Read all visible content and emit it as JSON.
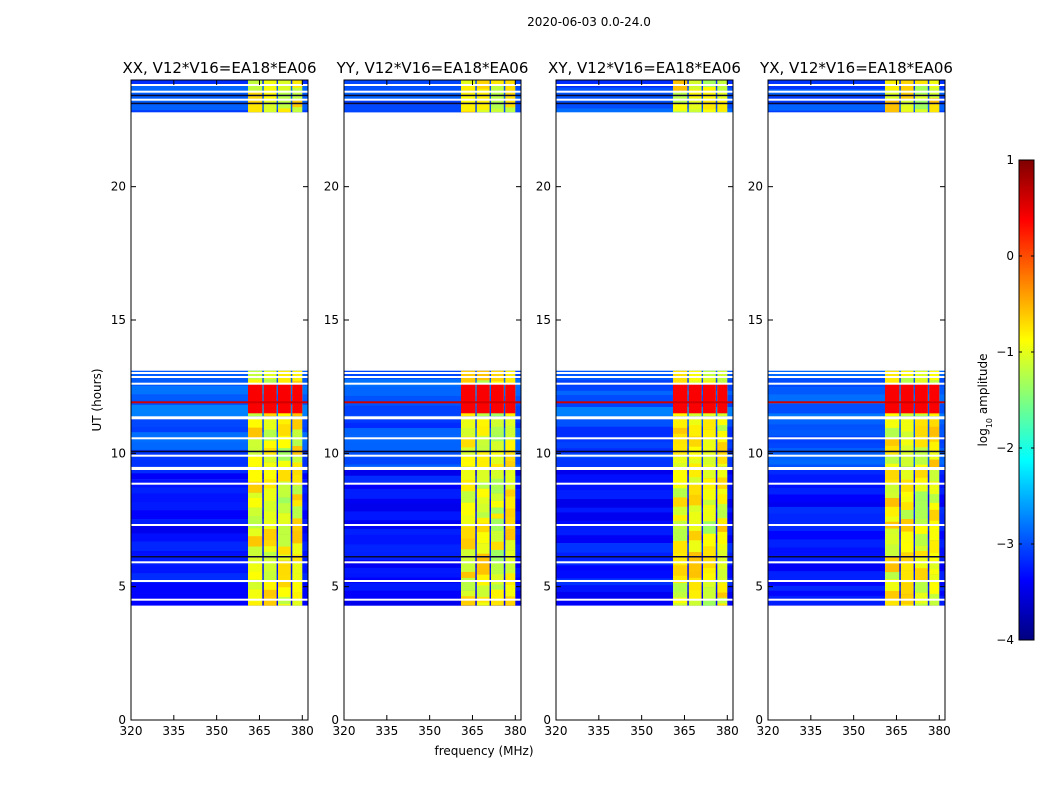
{
  "figure": {
    "suptitle": "2020-06-03 0.0-24.0"
  },
  "colors": {
    "colormap": [
      "#00007f",
      "#0000ff",
      "#007fff",
      "#00ffff",
      "#7fff7f",
      "#ffff00",
      "#ff7f00",
      "#ff0000",
      "#7f0000"
    ],
    "blank_row": "#ffffff",
    "line_row": "#0a0a30"
  },
  "chart_data": {
    "type": "heatmap",
    "title": "2020-06-03 0.0-24.0",
    "xlabel": "frequency (MHz)",
    "ylabel": "UT (hours)",
    "xlim": [
      320,
      382
    ],
    "ylim": [
      0,
      24
    ],
    "x_ticks": [
      320,
      335,
      350,
      365,
      380
    ],
    "y_ticks": [
      0,
      5,
      10,
      15,
      20
    ],
    "colorbar": {
      "label": "log10 amplitude",
      "label_text": "log",
      "label_sub": "10",
      "label_rest": " amplitude",
      "range": [
        -4,
        1
      ],
      "ticks": [
        -4,
        -3,
        -2,
        -1,
        0,
        1
      ],
      "tick_labels": [
        "−4",
        "−3",
        "−2",
        "−1",
        "0",
        "1"
      ]
    },
    "time_blocks": [
      {
        "start": 4.3,
        "end": 9.4,
        "level": -3.3
      },
      {
        "start": 9.5,
        "end": 11.3,
        "level": -3.0
      },
      {
        "start": 11.4,
        "end": 13.1,
        "level": -2.9
      },
      {
        "start": 22.8,
        "end": 24.0,
        "level": -3.0
      }
    ],
    "rfi_bands": [
      {
        "from": 361,
        "to": 366,
        "level": -0.9
      },
      {
        "from": 366.5,
        "to": 371,
        "level": -0.9
      },
      {
        "from": 371.5,
        "to": 376,
        "level": -1.0
      },
      {
        "from": 376.5,
        "to": 380,
        "level": -0.9
      }
    ],
    "strong_rfi_period": {
      "start": 11.5,
      "end": 12.6,
      "level": 0.4
    },
    "panels": [
      {
        "title": "XX, V12*V16=EA18*EA06"
      },
      {
        "title": "YY, V12*V16=EA18*EA06"
      },
      {
        "title": "XY, V12*V16=EA18*EA06"
      },
      {
        "title": "YX, V12*V16=EA18*EA06"
      }
    ]
  }
}
